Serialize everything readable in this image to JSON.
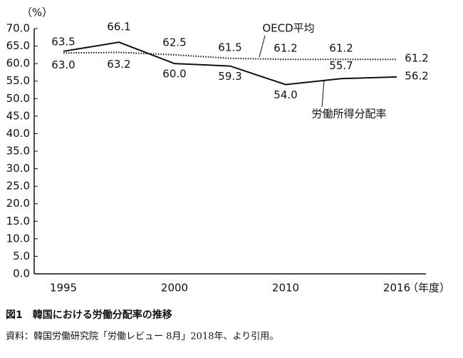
{
  "chart_data": {
    "type": "line",
    "y_unit": "（%）",
    "x_unit": "（年度）",
    "categories": [
      "1995",
      null,
      "2000",
      null,
      "2010",
      null,
      "2016"
    ],
    "series": [
      {
        "name": "労働所得分配率",
        "color": "#111111",
        "style": "solid",
        "values": [
          63.5,
          66.1,
          60.0,
          59.3,
          54.0,
          55.7,
          56.2
        ],
        "value_labels": [
          "63.5",
          "66.1",
          "60.0",
          "59.3",
          "54.0",
          "55.7",
          "56.2"
        ]
      },
      {
        "name": "OECD平均",
        "color": "#111111",
        "style": "dotted",
        "values": [
          63.0,
          63.2,
          62.5,
          61.5,
          61.2,
          61.2,
          61.2
        ],
        "value_labels": [
          "63.0",
          "63.2",
          "62.5",
          "61.5",
          "61.2",
          "61.2",
          "61.2"
        ]
      }
    ],
    "ylim": [
      0,
      70
    ],
    "yticks": [
      {
        "value": 0,
        "label": "0.0"
      },
      {
        "value": 5,
        "label": "5.0"
      },
      {
        "value": 10,
        "label": "10.0"
      },
      {
        "value": 15,
        "label": "15.0"
      },
      {
        "value": 20,
        "label": "20.0"
      },
      {
        "value": 25,
        "label": "25.0"
      },
      {
        "value": 30,
        "label": "30.0"
      },
      {
        "value": 35,
        "label": "35.0"
      },
      {
        "value": 40,
        "label": "40.0"
      },
      {
        "value": 45,
        "label": "45.0"
      },
      {
        "value": 50,
        "label": "50.0"
      },
      {
        "value": 55,
        "label": "55.0"
      },
      {
        "value": 60,
        "label": "60.0"
      },
      {
        "value": 65,
        "label": "65.0"
      },
      {
        "value": 70,
        "label": "70.0"
      }
    ],
    "caption": "図1　韓国における労働分配率の推移",
    "source": "資料：韓国労働研究院「労働レビュー 8月」2018年、より引用。"
  }
}
